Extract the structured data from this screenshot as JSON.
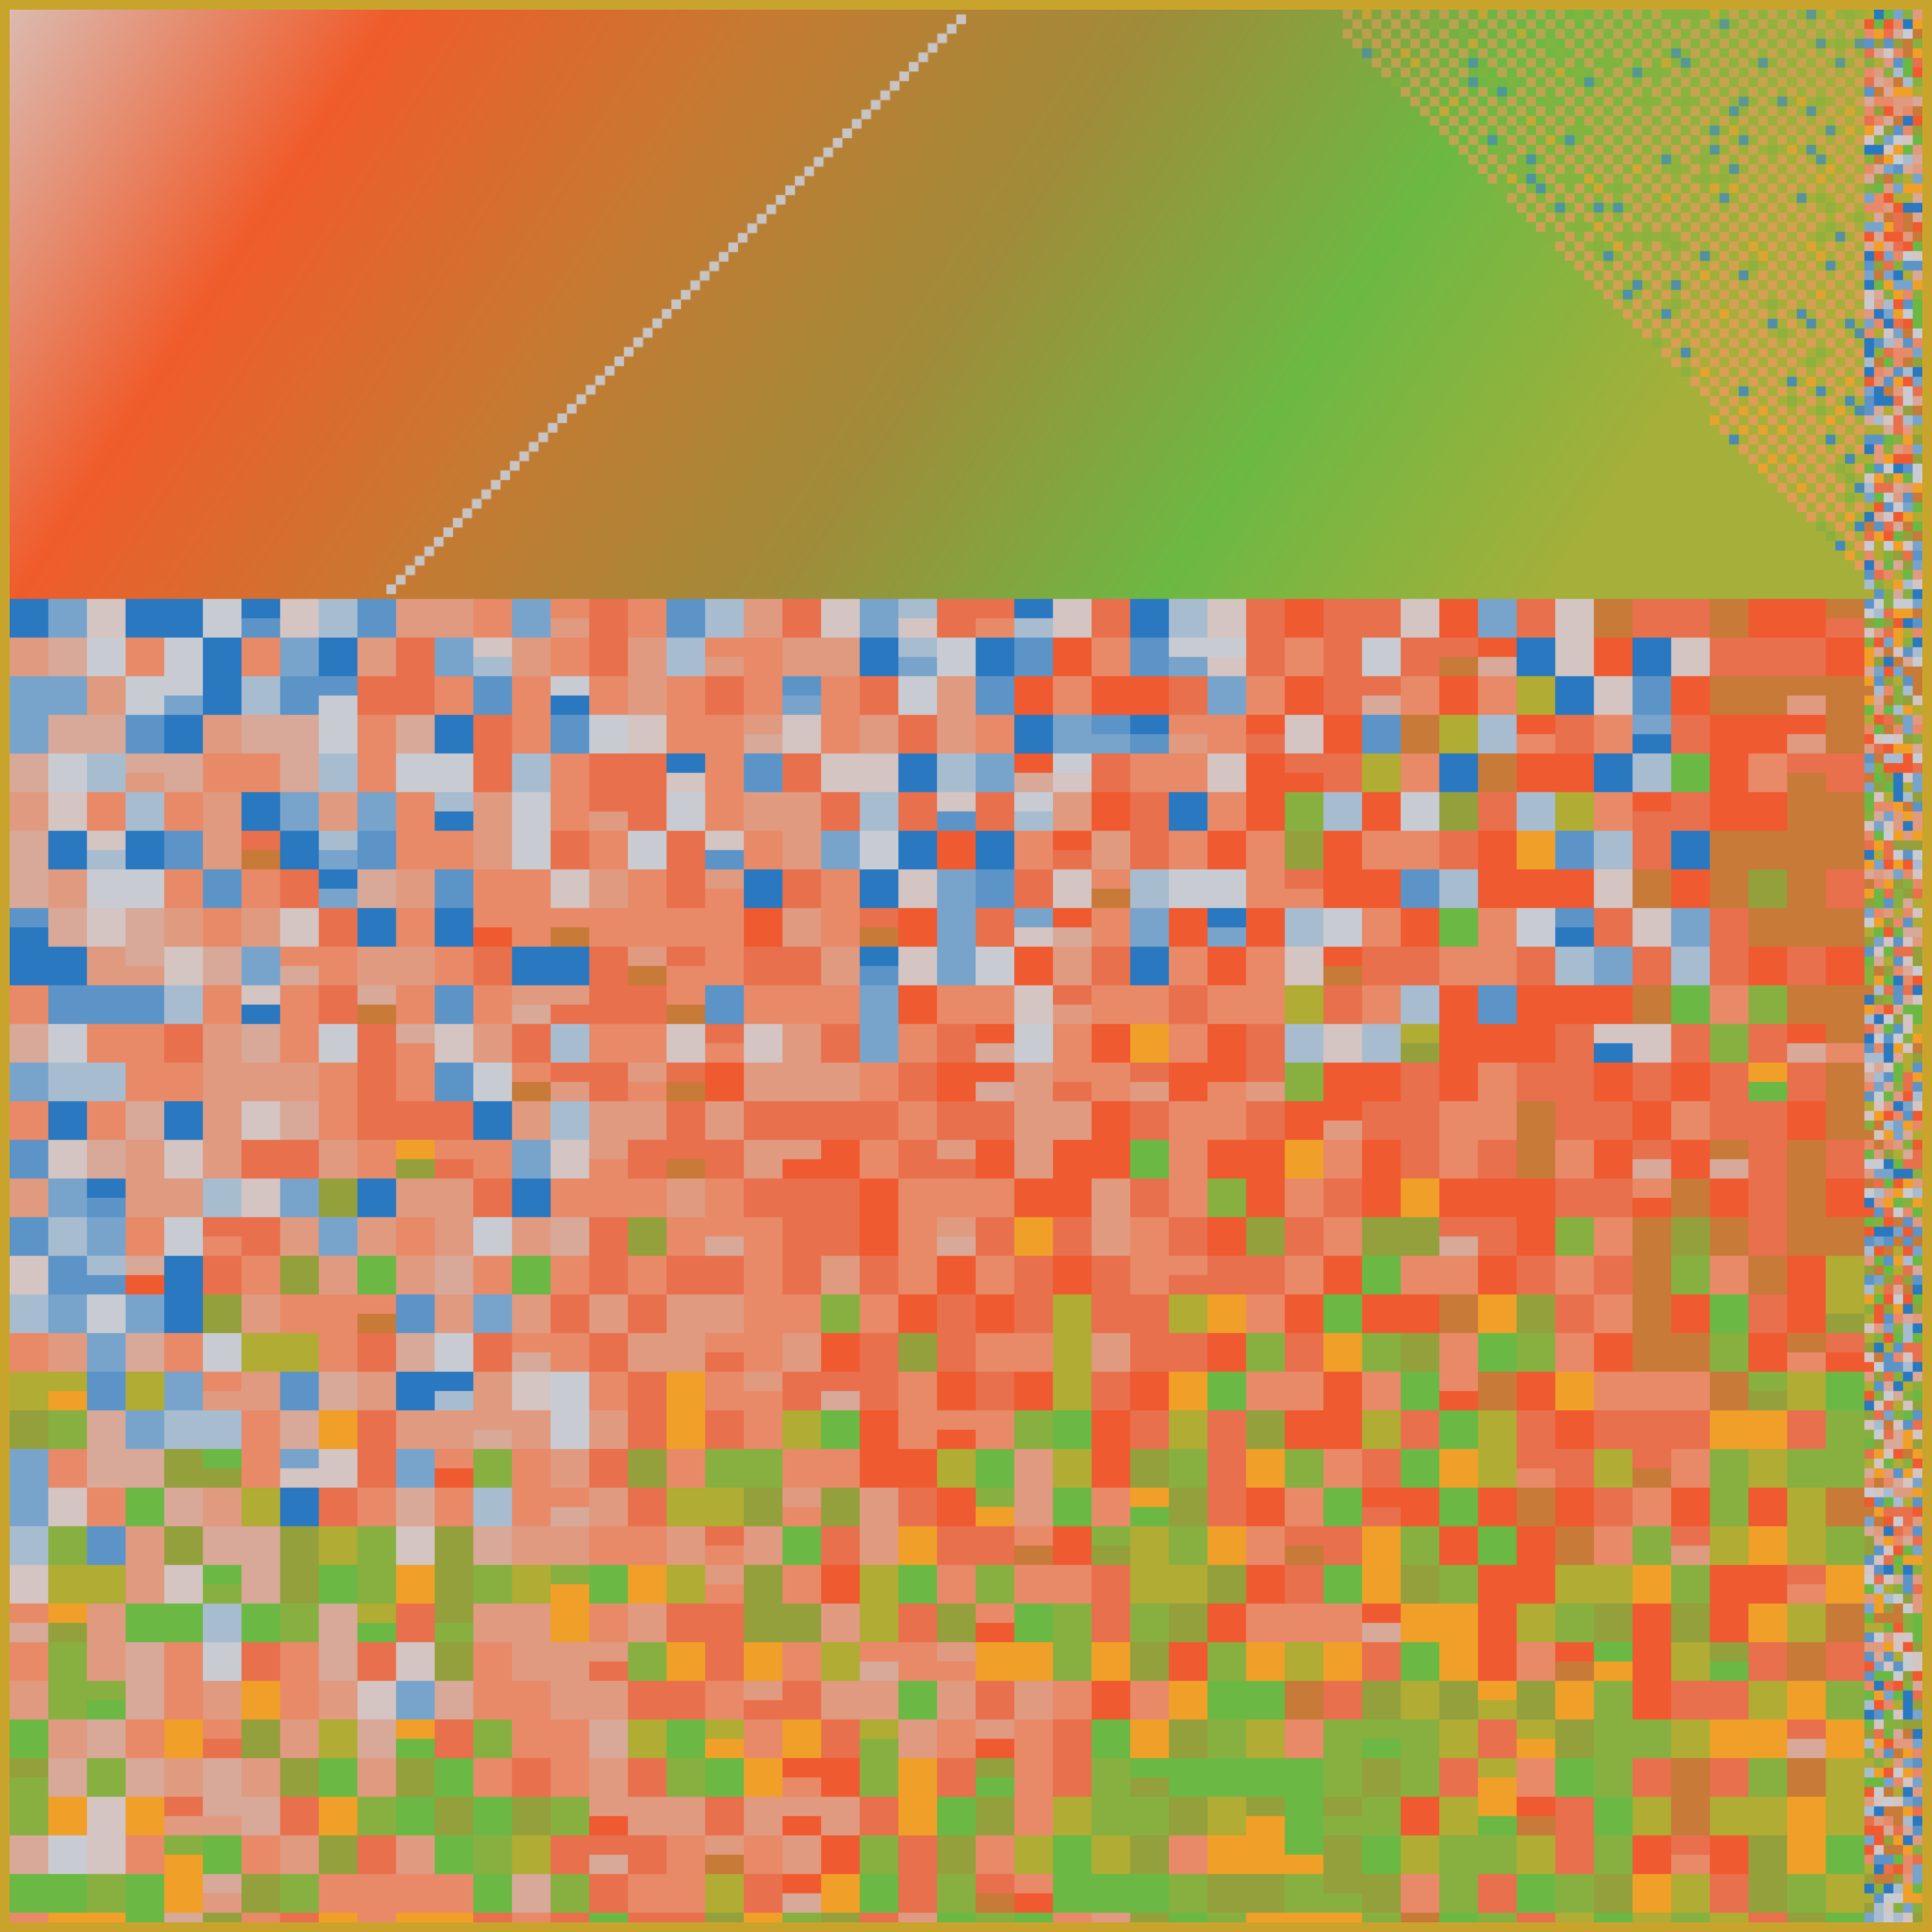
{
  "artwork": {
    "border_color": "#c9a42c",
    "top_gradient": [
      "#dcbab0",
      "#f05c2c",
      "#c57a32",
      "#a08c3a",
      "#6cb944",
      "#a4b03a"
    ],
    "diagonal_line_color": "#c8c4c4",
    "checker_colors": [
      "#e69a5a",
      "#8ab040",
      "#3f86c4",
      "#f0a030"
    ],
    "cool_palette": [
      "#d4c4c2",
      "#78a4cc",
      "#a8bcd0",
      "#c8ccd2",
      "#5c94c8",
      "#2a78c0"
    ],
    "warm_palette": [
      "#d8a898",
      "#e09a80",
      "#e88a68",
      "#e8704c",
      "#f05a30",
      "#c87a38"
    ],
    "green_palette": [
      "#6cb844",
      "#94a03c",
      "#b0ac34",
      "#88b040",
      "#f0a028"
    ]
  }
}
